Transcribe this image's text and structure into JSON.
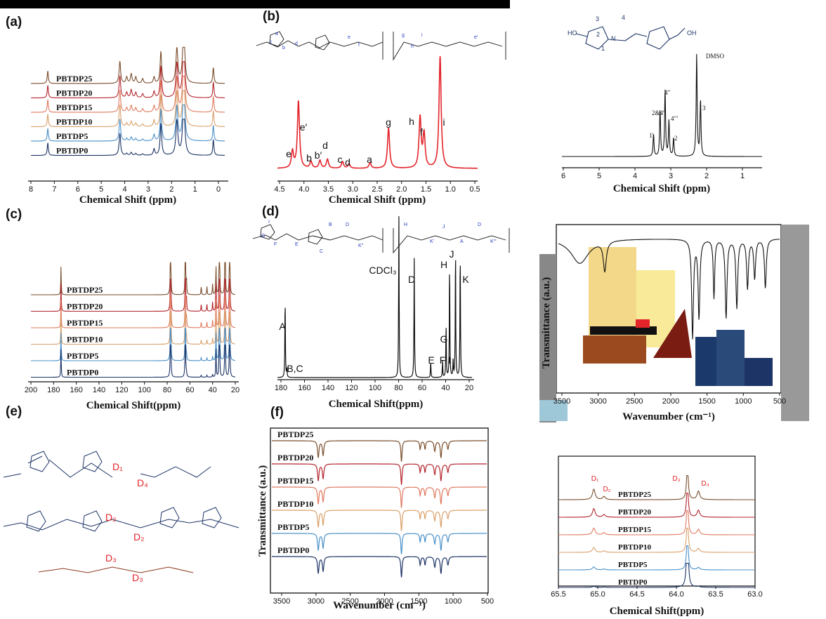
{
  "panel_labels": [
    "(a)",
    "(b)",
    "(c)",
    "(d)",
    "(e)",
    "(f)"
  ],
  "colors": {
    "PBTDP25": "#7a4e2d",
    "PBTDP20": "#b3262e",
    "PBTDP15": "#e07a5f",
    "PBTDP10": "#d9a06a",
    "PBTDP5": "#4a90c8",
    "PBTDP0": "#1d3466",
    "red_spectrum": "#e3242b",
    "black": "#111111"
  },
  "chart_data": [
    {
      "id": "a",
      "type": "line",
      "xlabel": "Chemical Shift (ppm)",
      "xlim": [
        8,
        -0.5
      ],
      "xticks": [
        "8",
        "7",
        "6",
        "5",
        "4",
        "3",
        "2",
        "1",
        "0"
      ],
      "series": [
        {
          "name": "PBTDP25"
        },
        {
          "name": "PBTDP20"
        },
        {
          "name": "PBTDP15"
        },
        {
          "name": "PBTDP10"
        },
        {
          "name": "PBTDP5"
        },
        {
          "name": "PBTDP0"
        }
      ],
      "peaks_ppm": [
        7.26,
        4.1,
        3.8,
        3.6,
        3.4,
        3.1,
        2.6,
        2.3,
        1.6,
        1.3,
        0
      ]
    },
    {
      "id": "b",
      "type": "line",
      "xlabel": "Chemical Shift (ppm)",
      "xlim": [
        4.5,
        0.5
      ],
      "xticks": [
        "4.5",
        "4.0",
        "3.5",
        "3.0",
        "2.5",
        "2.0",
        "1.5",
        "1.0",
        "0.5"
      ],
      "peaks": [
        {
          "label": "e",
          "x": 4.2,
          "h": 0.15
        },
        {
          "label": "e′",
          "x": 4.08,
          "h": 0.6
        },
        {
          "label": "b",
          "x": 3.83,
          "h": 0.06
        },
        {
          "label": "b′",
          "x": 3.65,
          "h": 0.07
        },
        {
          "label": "d",
          "x": 3.5,
          "h": 0.08
        },
        {
          "label": "c",
          "x": 3.2,
          "h": 0.06
        },
        {
          "label": "d",
          "x": 3.07,
          "h": 0.04
        },
        {
          "label": "a",
          "x": 2.65,
          "h": 0.05
        },
        {
          "label": "g",
          "x": 2.28,
          "h": 0.36
        },
        {
          "label": "h",
          "x": 1.65,
          "h": 0.45
        },
        {
          "label": "f",
          "x": 1.57,
          "h": 0.3
        },
        {
          "label": "i",
          "x": 1.25,
          "h": 1.0
        }
      ]
    },
    {
      "id": "b_inset",
      "type": "line",
      "xlabel": "Chemical Shift (ppm)",
      "xlim": [
        6,
        0.8
      ],
      "xticks": [
        "6",
        "5",
        "4",
        "3",
        "2",
        "1"
      ],
      "peaks": [
        {
          "label": "1′",
          "x": 3.62,
          "h": 0.22
        },
        {
          "label": "2&4′",
          "x": 3.45,
          "h": 0.45
        },
        {
          "label": "4′′",
          "x": 3.32,
          "h": 0.65
        },
        {
          "label": "4′′′",
          "x": 3.22,
          "h": 0.35
        },
        {
          "label": "2",
          "x": 3.1,
          "h": 0.18
        },
        {
          "label": "DMSO",
          "x": 2.5,
          "h": 1.0
        },
        {
          "label": "3",
          "x": 2.4,
          "h": 0.55
        }
      ]
    },
    {
      "id": "c",
      "type": "line",
      "xlabel": "Chemical Shift(ppm)",
      "xlim": [
        200,
        20
      ],
      "xticks": [
        "200",
        "180",
        "160",
        "140",
        "120",
        "100",
        "80",
        "60",
        "40",
        "20"
      ],
      "series": [
        {
          "name": "PBTDP25"
        },
        {
          "name": "PBTDP20"
        },
        {
          "name": "PBTDP15"
        },
        {
          "name": "PBTDP10"
        },
        {
          "name": "PBTDP5"
        },
        {
          "name": "PBTDP0"
        }
      ],
      "peaks_ppm": [
        173.5,
        77,
        64,
        63,
        50,
        45,
        40,
        37,
        34,
        29,
        25
      ]
    },
    {
      "id": "d",
      "type": "line",
      "xlabel": "Chemical Shift(ppm)",
      "xlim": [
        180,
        15
      ],
      "xticks": [
        "180",
        "160",
        "140",
        "120",
        "100",
        "80",
        "60",
        "40",
        "20"
      ],
      "solvent": "CDCl₃",
      "peaks": [
        {
          "label": "A",
          "x": 173.5,
          "h": 0.5
        },
        {
          "label": "B,C",
          "x": 172,
          "h": 0.05
        },
        {
          "label": "CDCl₃",
          "x": 77,
          "h": 1.0
        },
        {
          "label": "D",
          "x": 64,
          "h": 0.75
        },
        {
          "label": "E",
          "x": 50,
          "h": 0.1
        },
        {
          "label": "F",
          "x": 40,
          "h": 0.1
        },
        {
          "label": "G",
          "x": 37,
          "h": 0.33
        },
        {
          "label": "H",
          "x": 34,
          "h": 0.72
        },
        {
          "label": "I",
          "x": 31,
          "h": 0.1
        },
        {
          "label": "J",
          "x": 29,
          "h": 0.82
        },
        {
          "label": "K",
          "x": 25,
          "h": 0.8
        }
      ]
    },
    {
      "id": "f",
      "type": "line",
      "xlabel": "Wavenumber (cm⁻¹)",
      "ylabel": "Transmittance (a.u.)",
      "xlim": [
        3600,
        500
      ],
      "xticks": [
        "3500",
        "3000",
        "2500",
        "2000",
        "1500",
        "1000",
        "500"
      ],
      "series": [
        {
          "name": "PBTDP25"
        },
        {
          "name": "PBTDP20"
        },
        {
          "name": "PBTDP15"
        },
        {
          "name": "PBTDP10"
        },
        {
          "name": "PBTDP5"
        },
        {
          "name": "PBTDP0"
        }
      ],
      "bands_cm": [
        2930,
        2860,
        1730,
        1680,
        1460,
        1390,
        1250,
        1160,
        1060
      ]
    },
    {
      "id": "f_inset",
      "type": "line",
      "xlabel": "Wavenumber (cm⁻¹)",
      "ylabel": "Transmittance (a.u.)",
      "xlim": [
        3600,
        500
      ],
      "xticks": [
        "3500",
        "3000",
        "2500",
        "2000",
        "1500",
        "1000",
        "500"
      ]
    },
    {
      "id": "g",
      "type": "line",
      "xlabel": "Chemical Shift(ppm)",
      "xlim": [
        65.5,
        63.0
      ],
      "xticks": [
        "65.5",
        "65.0",
        "64.5",
        "64.0",
        "63.5",
        "63.0"
      ],
      "series": [
        {
          "name": "PBTDP25"
        },
        {
          "name": "PBTDP20"
        },
        {
          "name": "PBTDP15"
        },
        {
          "name": "PBTDP10"
        },
        {
          "name": "PBTDP5"
        },
        {
          "name": "PBTDP0"
        }
      ],
      "peaks": [
        {
          "label": "D₁",
          "x": 65.05
        },
        {
          "label": "D₂",
          "x": 64.92
        },
        {
          "label": "D₃",
          "x": 63.86
        },
        {
          "label": "D₄",
          "x": 63.72
        }
      ]
    }
  ],
  "structure_labels": {
    "b_top": [
      "a",
      "b",
      "c",
      "d",
      "e",
      "f",
      "g",
      "h",
      "i",
      "e′",
      "m",
      "n",
      "4"
    ],
    "d_top": [
      "I",
      "G",
      "F",
      "E",
      "C",
      "B",
      "D",
      "K′′",
      "H",
      "K′",
      "J",
      "A",
      "D",
      "K′′′",
      "m",
      "n",
      "4"
    ],
    "inset": [
      "3",
      "4",
      "2",
      "1",
      "HO",
      "OH",
      "N"
    ],
    "e": [
      "D₁",
      "D₄",
      "D₂",
      "D₂",
      "D₃",
      "D₃"
    ]
  }
}
